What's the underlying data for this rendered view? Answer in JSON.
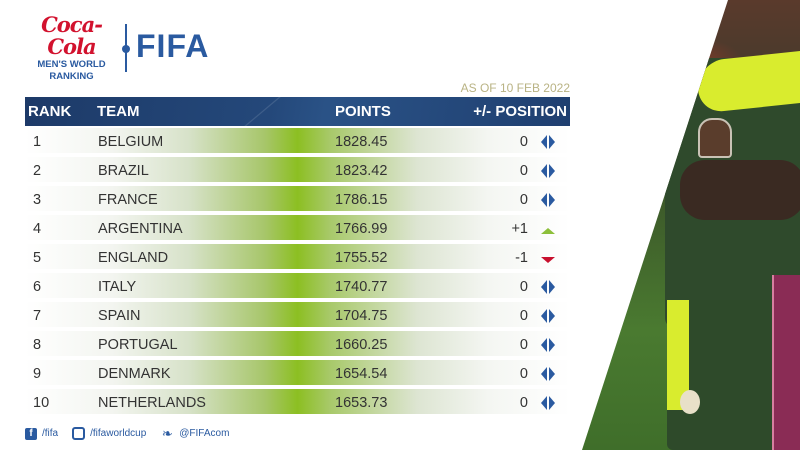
{
  "branding": {
    "sponsor": "Coca-Cola",
    "subtitle_line1": "MEN'S WORLD",
    "subtitle_line2": "RANKING",
    "org": "FIFA"
  },
  "as_of": "AS OF 10 FEB 2022",
  "table": {
    "headers": {
      "rank": "RANK",
      "team": "TEAM",
      "points": "POINTS",
      "position": "+/- POSITION"
    },
    "rows": [
      {
        "rank": "1",
        "team": "BELGIUM",
        "points": "1828.45",
        "delta": "0",
        "trend": "same"
      },
      {
        "rank": "2",
        "team": "BRAZIL",
        "points": "1823.42",
        "delta": "0",
        "trend": "same"
      },
      {
        "rank": "3",
        "team": "FRANCE",
        "points": "1786.15",
        "delta": "0",
        "trend": "same"
      },
      {
        "rank": "4",
        "team": "ARGENTINA",
        "points": "1766.99",
        "delta": "+1",
        "trend": "up"
      },
      {
        "rank": "5",
        "team": "ENGLAND",
        "points": "1755.52",
        "delta": "-1",
        "trend": "down"
      },
      {
        "rank": "6",
        "team": "ITALY",
        "points": "1740.77",
        "delta": "0",
        "trend": "same"
      },
      {
        "rank": "7",
        "team": "SPAIN",
        "points": "1704.75",
        "delta": "0",
        "trend": "same"
      },
      {
        "rank": "8",
        "team": "PORTUGAL",
        "points": "1660.25",
        "delta": "0",
        "trend": "same"
      },
      {
        "rank": "9",
        "team": "DENMARK",
        "points": "1654.54",
        "delta": "0",
        "trend": "same"
      },
      {
        "rank": "10",
        "team": "NETHERLANDS",
        "points": "1653.73",
        "delta": "0",
        "trend": "same"
      }
    ]
  },
  "footer": {
    "facebook": "/fifa",
    "instagram": "/fifaworldcup",
    "twitter": "@FIFAcom"
  },
  "icons": {
    "same": "left-right-arrows-icon",
    "up": "triangle-up-icon",
    "down": "triangle-down-icon",
    "facebook_glyph": "f",
    "twitter_glyph": "❧"
  },
  "colors": {
    "header_bg": "#1d3a68",
    "accent_green": "#8cbf22",
    "brand_blue": "#2a5aa0",
    "coke_red": "#d2122e",
    "up": "#8cbf3a",
    "down": "#c8102e",
    "as_of": "#b9b384"
  },
  "chart_data": {
    "type": "table",
    "title": "Coca-Cola Men's World Ranking",
    "subtitle": "AS OF 10 FEB 2022",
    "columns": [
      "RANK",
      "TEAM",
      "POINTS",
      "+/- POSITION"
    ],
    "rows": [
      [
        1,
        "BELGIUM",
        1828.45,
        0
      ],
      [
        2,
        "BRAZIL",
        1823.42,
        0
      ],
      [
        3,
        "FRANCE",
        1786.15,
        0
      ],
      [
        4,
        "ARGENTINA",
        1766.99,
        1
      ],
      [
        5,
        "ENGLAND",
        1755.52,
        -1
      ],
      [
        6,
        "ITALY",
        1740.77,
        0
      ],
      [
        7,
        "SPAIN",
        1704.75,
        0
      ],
      [
        8,
        "PORTUGAL",
        1660.25,
        0
      ],
      [
        9,
        "DENMARK",
        1654.54,
        0
      ],
      [
        10,
        "NETHERLANDS",
        1653.73,
        0
      ]
    ]
  }
}
